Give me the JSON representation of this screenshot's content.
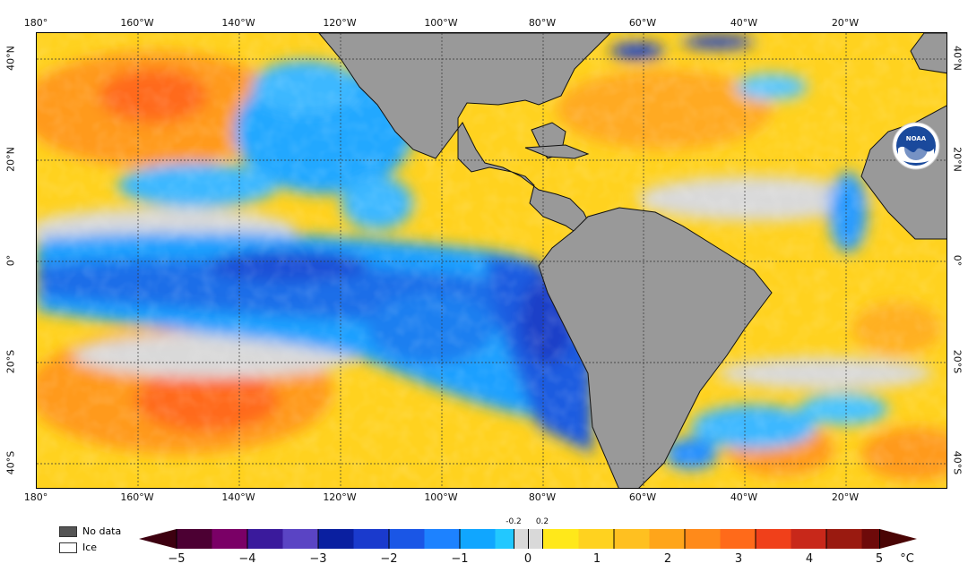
{
  "axes": {
    "longitude_labels": [
      "180°",
      "160°W",
      "140°W",
      "120°W",
      "100°W",
      "80°W",
      "60°W",
      "40°W",
      "20°W"
    ],
    "latitude_labels": [
      "40°N",
      "20°N",
      "0°",
      "20°S",
      "40°S"
    ]
  },
  "legend": {
    "no_data_label": "No data",
    "ice_label": "Ice",
    "unit": "°C",
    "ticks": [
      "−5",
      "−4",
      "−3",
      "−2",
      "−1",
      "0",
      "1",
      "2",
      "3",
      "4",
      "5"
    ],
    "near_zero_ticks": [
      "-0.2",
      "0.2"
    ],
    "no_data_color": "#555555",
    "ice_color": "#ffffff",
    "neutral_color": "#d9d9d9",
    "land_color": "#999999"
  },
  "logo": {
    "text": "NOAA",
    "icon": "noaa-logo-icon"
  }
}
